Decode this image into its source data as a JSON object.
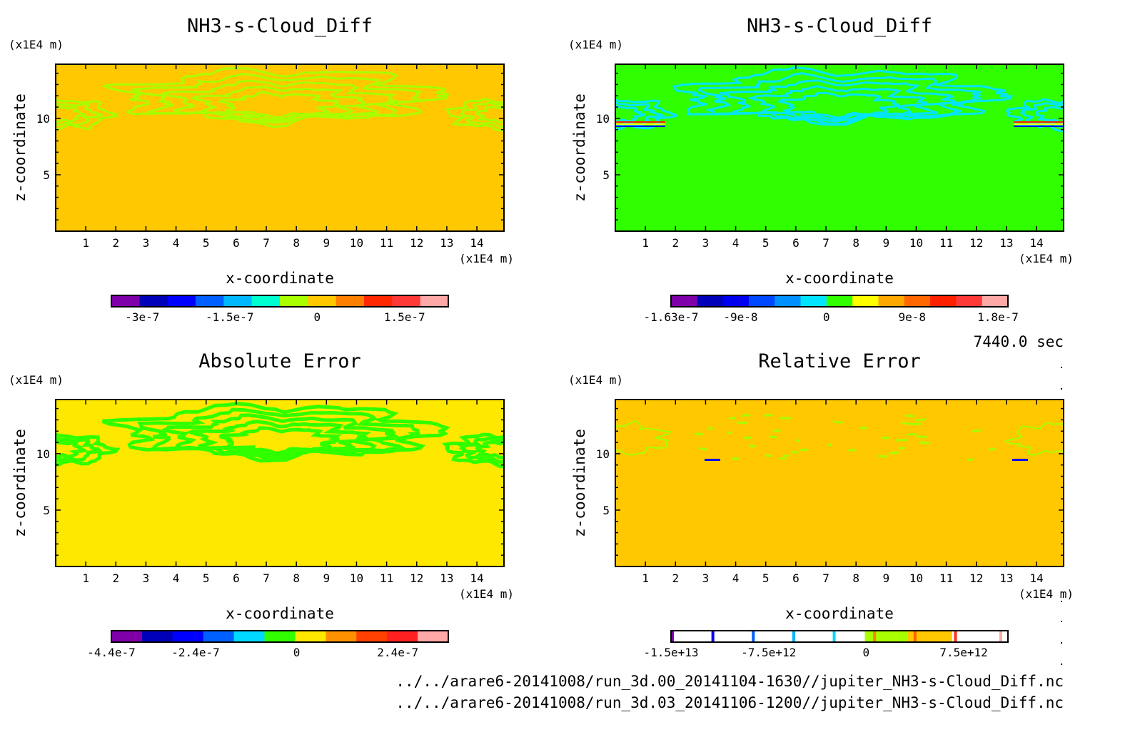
{
  "time_label": "7440.0 sec",
  "files": [
    "../../arare6-20141008/run_3d.00_20141104-1630//jupiter_NH3-s-Cloud_Diff.nc",
    "../../arare6-20141008/run_3d.03_20141106-1200//jupiter_NH3-s-Cloud_Diff.nc"
  ],
  "chart_data": [
    {
      "type": "heatmap",
      "title": "NH3-s-Cloud_Diff",
      "xlabel": "x-coordinate",
      "ylabel": "z-coordinate",
      "x_unit": "(x1E4 m)",
      "y_unit": "(x1E4 m)",
      "xlim": [
        0,
        14.9
      ],
      "ylim": [
        0,
        14.8
      ],
      "xticks": [
        1,
        2,
        3,
        4,
        5,
        6,
        7,
        8,
        9,
        10,
        11,
        12,
        13,
        14
      ],
      "yticks": [
        5,
        10
      ],
      "background_color": "#ffc800",
      "contour_color": "#a8ff00",
      "colorbar": {
        "range": [
          -3.53e-07,
          2.25e-07
        ],
        "colors": [
          "#7f00a8",
          "#0000b8",
          "#0000ff",
          "#0060ff",
          "#00b8ff",
          "#00ffd0",
          "#a8ff00",
          "#ffc800",
          "#ff8000",
          "#ff2800",
          "#ff3838",
          "#ffa8a8"
        ],
        "ticks": [
          {
            "value": -3e-07,
            "label": "-3e-7"
          },
          {
            "value": -1.5e-07,
            "label": "-1.5e-7"
          },
          {
            "value": 0,
            "label": "0"
          },
          {
            "value": 1.5e-07,
            "label": "1.5e-7"
          }
        ]
      }
    },
    {
      "type": "heatmap",
      "title": "NH3-s-Cloud_Diff",
      "xlabel": "x-coordinate",
      "ylabel": "z-coordinate",
      "x_unit": "(x1E4 m)",
      "y_unit": "(x1E4 m)",
      "xlim": [
        0,
        14.9
      ],
      "ylim": [
        0,
        14.8
      ],
      "xticks": [
        1,
        2,
        3,
        4,
        5,
        6,
        7,
        8,
        9,
        10,
        11,
        12,
        13,
        14
      ],
      "yticks": [
        5,
        10
      ],
      "background_color": "#30ff00",
      "contour_color": "#00e4ff",
      "colorbar": {
        "range": [
          -1.63e-07,
          1.905e-07
        ],
        "colors": [
          "#7f00a8",
          "#0000b8",
          "#0000ee",
          "#0048ff",
          "#0090ff",
          "#00e4ff",
          "#30ff00",
          "#ffff00",
          "#ffa800",
          "#ff6800",
          "#ff2000",
          "#ff3838",
          "#ffa8a8"
        ],
        "ticks": [
          {
            "value": -1.63e-07,
            "label": "-1.63e-7"
          },
          {
            "value": -9e-08,
            "label": "-9e-8"
          },
          {
            "value": 0,
            "label": "0"
          },
          {
            "value": 9e-08,
            "label": "9e-8"
          },
          {
            "value": 1.8e-07,
            "label": "1.8e-7"
          }
        ]
      }
    },
    {
      "type": "heatmap",
      "title": "Absolute Error",
      "xlabel": "x-coordinate",
      "ylabel": "z-coordinate",
      "x_unit": "(x1E4 m)",
      "y_unit": "(x1E4 m)",
      "xlim": [
        0,
        14.9
      ],
      "ylim": [
        0,
        14.8
      ],
      "xticks": [
        1,
        2,
        3,
        4,
        5,
        6,
        7,
        8,
        9,
        10,
        11,
        12,
        13,
        14
      ],
      "yticks": [
        5,
        10
      ],
      "background_color": "#ffe800",
      "contour_color": "#30ff00",
      "colorbar": {
        "range": [
          -4.4e-07,
          3.6e-07
        ],
        "colors": [
          "#7f00a8",
          "#0000b8",
          "#0000ff",
          "#0060ff",
          "#00d8ff",
          "#30ff00",
          "#ffe800",
          "#ff9000",
          "#ff4000",
          "#ff2020",
          "#ffa8a8"
        ],
        "ticks": [
          {
            "value": -4.4e-07,
            "label": "-4.4e-7"
          },
          {
            "value": -2.4e-07,
            "label": "-2.4e-7"
          },
          {
            "value": 0,
            "label": "0"
          },
          {
            "value": 2.4e-07,
            "label": "2.4e-7"
          }
        ]
      }
    },
    {
      "type": "heatmap",
      "title": "Relative Error",
      "xlabel": "x-coordinate",
      "ylabel": "z-coordinate",
      "x_unit": "(x1E4 m)",
      "y_unit": "(x1E4 m)",
      "xlim": [
        0,
        14.9
      ],
      "ylim": [
        0,
        14.8
      ],
      "xticks": [
        1,
        2,
        3,
        4,
        5,
        6,
        7,
        8,
        9,
        10,
        11,
        12,
        13,
        14
      ],
      "yticks": [
        5,
        10
      ],
      "background_color": "#ffc800",
      "contour_color": "#a8ff00",
      "colorbar": {
        "range": [
          -15000000000000.0,
          10900000000000.0
        ],
        "stripes": [
          "#7f00a8",
          "#0000ff",
          "#0060ff",
          "#00b8ff",
          "#00d8ff",
          "#ff8000",
          "#ff6000",
          "#ff3020",
          "#ffa8a8"
        ],
        "bands": [
          {
            "from": -100000000000.0,
            "to": 3200000000000.0,
            "color": "#a8ff00"
          },
          {
            "from": 3200000000000.0,
            "to": 6600000000000.0,
            "color": "#ffc800"
          }
        ],
        "ticks": [
          {
            "value": -15000000000000.0,
            "label": "-1.5e+13"
          },
          {
            "value": -7500000000000.0,
            "label": "-7.5e+12"
          },
          {
            "value": 0,
            "label": "0"
          },
          {
            "value": 7500000000000.0,
            "label": "7.5e+12"
          }
        ]
      }
    }
  ]
}
